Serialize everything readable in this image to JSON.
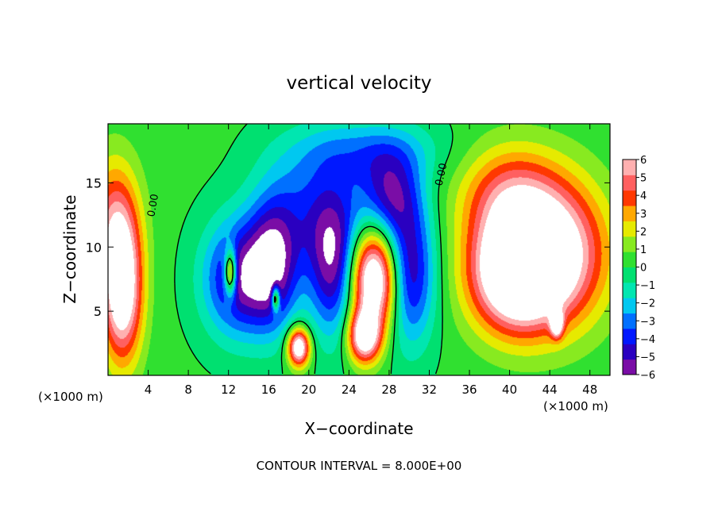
{
  "chart_data": {
    "type": "heatmap",
    "title": "vertical velocity",
    "xlabel": "X−coordinate",
    "ylabel": "Z−coordinate",
    "x_unit_left": "(×1000 m)",
    "x_unit_right": "(×1000 m)",
    "footer": "CONTOUR INTERVAL = 8.000E+00",
    "xlim": [
      0,
      50
    ],
    "ylim": [
      0,
      19.6
    ],
    "x_ticks": [
      4,
      8,
      12,
      16,
      20,
      24,
      28,
      32,
      36,
      40,
      44,
      48
    ],
    "x_tick_labels": [
      "4",
      "8",
      "12",
      "16",
      "20",
      "24",
      "28",
      "32",
      "36",
      "40",
      "44",
      "48"
    ],
    "y_ticks": [
      5,
      10,
      15
    ],
    "y_tick_labels": [
      "5",
      "10",
      "15"
    ],
    "colorbar": {
      "min": -6,
      "max": 6,
      "ticks": [
        6,
        5,
        4,
        3,
        2,
        1,
        0,
        -1,
        -2,
        -3,
        -4,
        -5,
        -6
      ],
      "tick_labels": [
        "6",
        "5",
        "4",
        "3",
        "2",
        "1",
        "0",
        "−1",
        "−2",
        "−3",
        "−4",
        "−5",
        "−6"
      ],
      "colors": [
        "#7a0da6",
        "#2a00c0",
        "#0018ff",
        "#0070ff",
        "#00c8f0",
        "#00e6b0",
        "#00e070",
        "#30e030",
        "#88ea20",
        "#e6ea00",
        "#ffa800",
        "#ff3800",
        "#ff6060",
        "#ffb0b0"
      ],
      "saturate_high": "#ffffff",
      "saturate_low": "#ffffff"
    },
    "contour_labels": [
      {
        "text": "0.00",
        "x": 4.8,
        "z": 13.2,
        "angle": -80
      },
      {
        "text": "0.00",
        "x": 33.5,
        "z": 15.6,
        "angle": -78
      }
    ],
    "features": [
      {
        "kind": "updraft",
        "x": 1.4,
        "z": 6.5,
        "amp": 7.5,
        "sx": 2.0,
        "sz": 5.5
      },
      {
        "kind": "updraft",
        "x": 0.6,
        "z": 12.0,
        "amp": 4.0,
        "sx": 2.5,
        "sz": 5.0
      },
      {
        "kind": "updraft",
        "x": 26.5,
        "z": 7.5,
        "amp": 9.0,
        "sx": 2.5,
        "sz": 4.0
      },
      {
        "kind": "updraft",
        "x": 25.5,
        "z": 3.0,
        "amp": 7.0,
        "sx": 1.6,
        "sz": 2.0
      },
      {
        "kind": "updraft",
        "x": 40.5,
        "z": 8.0,
        "amp": 9.0,
        "sx": 4.5,
        "sz": 4.5
      },
      {
        "kind": "updraft",
        "x": 45.0,
        "z": 9.5,
        "amp": 6.0,
        "sx": 5.0,
        "sz": 5.5
      },
      {
        "kind": "updraft",
        "x": 40.0,
        "z": 14.0,
        "amp": 4.0,
        "sx": 5.0,
        "sz": 4.0
      },
      {
        "kind": "updraft",
        "x": 19.0,
        "z": 2.2,
        "amp": 8.0,
        "sx": 1.1,
        "sz": 1.5
      },
      {
        "kind": "updraft",
        "x": 12.2,
        "z": 8.0,
        "amp": 7.0,
        "sx": 0.6,
        "sz": 1.8
      },
      {
        "kind": "updraft",
        "x": 16.7,
        "z": 6.0,
        "amp": 6.0,
        "sx": 0.4,
        "sz": 1.0
      },
      {
        "kind": "updraft",
        "x": 44.7,
        "z": 4.0,
        "amp": 6.0,
        "sx": 0.6,
        "sz": 1.0
      },
      {
        "kind": "downdraft",
        "x": 13.0,
        "z": 7.5,
        "amp": -5.5,
        "sx": 3.5,
        "sz": 4.5
      },
      {
        "kind": "downdraft",
        "x": 16.5,
        "z": 8.5,
        "amp": -5.0,
        "sx": 2.5,
        "sz": 5.0
      },
      {
        "kind": "downdraft",
        "x": 22.5,
        "z": 8.5,
        "amp": -5.5,
        "sx": 2.5,
        "sz": 5.5
      },
      {
        "kind": "downdraft",
        "x": 30.0,
        "z": 8.0,
        "amp": -5.5,
        "sx": 2.5,
        "sz": 5.5
      },
      {
        "kind": "downdraft",
        "x": 28.0,
        "z": 14.0,
        "amp": -4.5,
        "sx": 3.0,
        "sz": 3.5
      },
      {
        "kind": "downdraft",
        "x": 20.0,
        "z": 13.0,
        "amp": -3.0,
        "sx": 5.0,
        "sz": 5.0
      },
      {
        "kind": "downdraft",
        "x": 26.0,
        "z": 17.5,
        "amp": -2.5,
        "sx": 7.0,
        "sz": 2.5
      }
    ]
  }
}
